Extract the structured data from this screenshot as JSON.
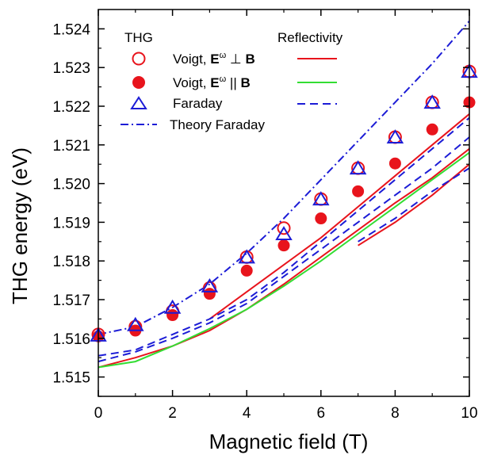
{
  "chart_data": {
    "type": "scatter",
    "xlabel": "Magnetic field (T)",
    "ylabel": "THG  energy (eV)",
    "xlim": [
      0,
      10
    ],
    "ylim": [
      1.5145,
      1.5245
    ],
    "xticks": [
      "0",
      "2",
      "4",
      "6",
      "8",
      "10"
    ],
    "yticks": [
      "1.515",
      "1.516",
      "1.517",
      "1.518",
      "1.519",
      "1.520",
      "1.521",
      "1.522",
      "1.523",
      "1.524"
    ],
    "legend": {
      "thg_header": "THG",
      "refl_header": "Reflectivity",
      "voigt_perp": {
        "prefix": "Voigt, ",
        "E": "E",
        "sup": "ω",
        "rel": " ⊥ ",
        "B": "B"
      },
      "voigt_par": {
        "prefix": "Voigt, ",
        "E": "E",
        "sup": "ω",
        "rel": " || ",
        "B": "B"
      },
      "faraday": "Faraday",
      "theory": "Theory Faraday"
    },
    "colors": {
      "red": "#e8141c",
      "green": "#33dd33",
      "blue": "#1c1cd6"
    },
    "series": [
      {
        "name": "Voigt, Eω ⊥ B",
        "marker": "open-circle",
        "color": "#e8141c",
        "x": [
          0,
          1,
          2,
          3,
          4,
          5,
          6,
          7,
          8,
          9,
          10
        ],
        "y": [
          1.5161,
          1.5163,
          1.5167,
          1.5173,
          1.5181,
          1.51885,
          1.5196,
          1.5204,
          1.5212,
          1.5221,
          1.5229
        ]
      },
      {
        "name": "Voigt, Eω || B",
        "marker": "filled-circle",
        "color": "#e8141c",
        "x": [
          0,
          1,
          2,
          3,
          4,
          5,
          6,
          7,
          8,
          9,
          10
        ],
        "y": [
          1.51605,
          1.5162,
          1.5166,
          1.51715,
          1.51775,
          1.5184,
          1.5191,
          1.5198,
          1.52052,
          1.5214,
          1.5221
        ]
      },
      {
        "name": "Faraday",
        "marker": "open-triangle",
        "color": "#1c1cd6",
        "x": [
          0,
          1,
          2,
          3,
          4,
          5,
          6,
          7,
          8,
          9,
          10
        ],
        "y": [
          1.51608,
          1.51635,
          1.5168,
          1.51735,
          1.5181,
          1.5187,
          1.5196,
          1.5204,
          1.5212,
          1.5221,
          1.5229
        ]
      },
      {
        "name": "Theory Faraday",
        "line": "dash-dot",
        "color": "#1c1cd6",
        "x": [
          0,
          1,
          2,
          3,
          4,
          5,
          6,
          7,
          8,
          9,
          10
        ],
        "y": [
          1.5161,
          1.5163,
          1.5168,
          1.5174,
          1.5182,
          1.5191,
          1.5201,
          1.5211,
          1.5221,
          1.5231,
          1.5242
        ]
      },
      {
        "name": "Reflectivity Voigt ⊥ (lower)",
        "line": "solid",
        "color": "#e8141c",
        "x": [
          0,
          1,
          2,
          3,
          4,
          5,
          6,
          7,
          8,
          9,
          10
        ],
        "y": [
          1.51525,
          1.5155,
          1.5158,
          1.5162,
          1.51675,
          1.5174,
          1.5181,
          1.5188,
          1.5195,
          1.52015,
          1.5209
        ]
      },
      {
        "name": "Reflectivity Voigt ⊥ (upper)",
        "line": "solid",
        "color": "#e8141c",
        "x": [
          3,
          4,
          5,
          6,
          7,
          8,
          9,
          10
        ],
        "y": [
          1.5165,
          1.5172,
          1.5179,
          1.5186,
          1.5194,
          1.5202,
          1.521,
          1.5218
        ]
      },
      {
        "name": "Reflectivity Voigt ⊥ (short)",
        "line": "solid",
        "color": "#e8141c",
        "x": [
          7,
          8,
          9,
          10
        ],
        "y": [
          1.5184,
          1.519,
          1.5197,
          1.5205
        ]
      },
      {
        "name": "Reflectivity Voigt || ",
        "line": "solid",
        "color": "#33dd33",
        "x": [
          0,
          1,
          2,
          3,
          4,
          5,
          6,
          7,
          8,
          9,
          10
        ],
        "y": [
          1.51525,
          1.5154,
          1.5158,
          1.51625,
          1.51675,
          1.51735,
          1.518,
          1.5187,
          1.5194,
          1.5201,
          1.5208
        ]
      },
      {
        "name": "Reflectivity Faraday (lower)",
        "line": "dashed",
        "color": "#1c1cd6",
        "x": [
          0,
          1,
          2,
          3,
          4,
          5,
          6,
          7,
          8,
          9,
          10
        ],
        "y": [
          1.5154,
          1.51565,
          1.516,
          1.5164,
          1.5169,
          1.5176,
          1.5183,
          1.519,
          1.5197,
          1.5204,
          1.5212
        ]
      },
      {
        "name": "Reflectivity Faraday (upper)",
        "line": "dashed",
        "color": "#1c1cd6",
        "x": [
          0,
          1,
          2,
          3,
          4,
          5,
          6,
          7,
          8,
          9,
          10
        ],
        "y": [
          1.51555,
          1.5157,
          1.5161,
          1.5165,
          1.517,
          1.5177,
          1.5185,
          1.5193,
          1.5201,
          1.5209,
          1.5217
        ]
      },
      {
        "name": "Reflectivity Faraday (short)",
        "line": "dashed",
        "color": "#1c1cd6",
        "x": [
          7,
          8,
          9,
          10
        ],
        "y": [
          1.5185,
          1.5191,
          1.5198,
          1.5204
        ]
      }
    ]
  }
}
